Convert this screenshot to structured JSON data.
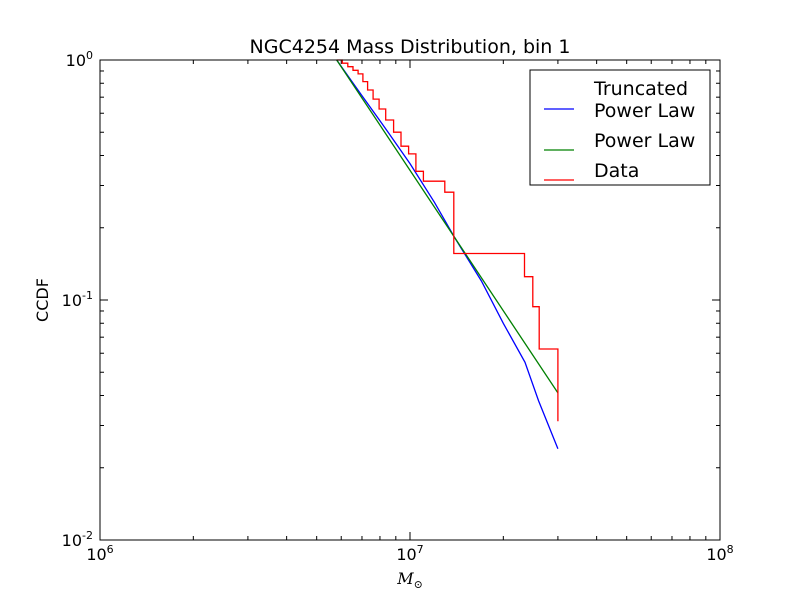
{
  "chart_data": {
    "type": "line",
    "title": "NGC4254 Mass Distribution, bin 1",
    "xlabel": "M",
    "xlabel_subscript": "⊙",
    "ylabel": "CCDF",
    "xscale": "log",
    "yscale": "log",
    "xlim": [
      1000000,
      100000000
    ],
    "ylim": [
      0.01,
      1
    ],
    "x_ticks": [
      {
        "value": 1000000,
        "base": "10",
        "exp": "6"
      },
      {
        "value": 10000000,
        "base": "10",
        "exp": "7"
      },
      {
        "value": 100000000,
        "base": "10",
        "exp": "8"
      }
    ],
    "y_ticks": [
      {
        "value": 1,
        "base": "10",
        "exp": "0"
      },
      {
        "value": 0.1,
        "base": "10",
        "exp": "-1"
      },
      {
        "value": 0.01,
        "base": "10",
        "exp": "-2"
      }
    ],
    "legend": {
      "position": "top-right"
    },
    "series": [
      {
        "name": "Truncated\nPower Law",
        "color": "#0000ff",
        "style": "line",
        "x": [
          5800000,
          7000000,
          8500000,
          10000000,
          12000000,
          14000000,
          17000000,
          20000000,
          23500000,
          26000000,
          30000000
        ],
        "y": [
          1.0,
          0.71,
          0.5,
          0.37,
          0.255,
          0.18,
          0.12,
          0.08,
          0.055,
          0.038,
          0.024
        ]
      },
      {
        "name": "Power Law",
        "color": "#008000",
        "style": "line",
        "x": [
          5800000,
          30000000
        ],
        "y": [
          1.0,
          0.041
        ]
      },
      {
        "name": "Data",
        "color": "#ff0000",
        "style": "step",
        "x": [
          5800000,
          6050000,
          6300000,
          6550000,
          6800000,
          7050000,
          7300000,
          7600000,
          7950000,
          8350000,
          8850000,
          9350000,
          9900000,
          10450000,
          11050000,
          12950000,
          13850000,
          23400000,
          24900000,
          26100000,
          30000000
        ],
        "y": [
          1.0,
          0.97,
          0.9375,
          0.90625,
          0.875,
          0.8125,
          0.75,
          0.6875,
          0.625,
          0.5625,
          0.5,
          0.4375,
          0.40625,
          0.34375,
          0.3125,
          0.28125,
          0.15625,
          0.125,
          0.09375,
          0.0625,
          0.03125
        ]
      }
    ]
  }
}
